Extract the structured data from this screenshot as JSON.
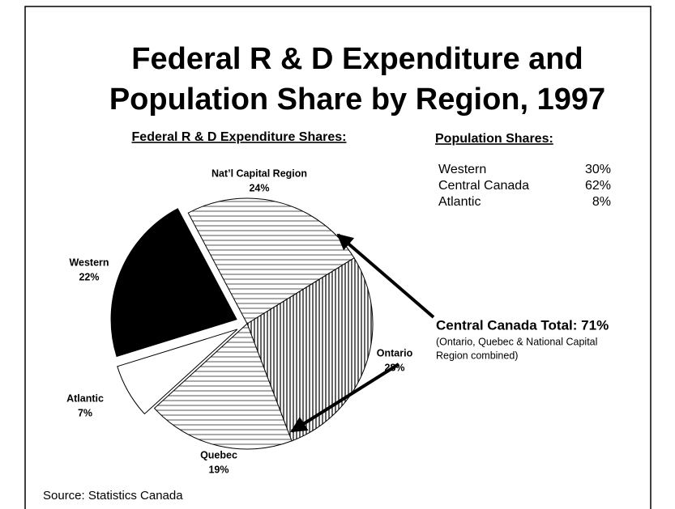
{
  "chart_data": {
    "type": "pie",
    "title": [
      "Federal R & D Expenditure and",
      "Population Share by Region, 1997"
    ],
    "subtitle": "Federal R & D Expenditure Shares:",
    "categories": [
      "Nat’l Capital Region",
      "Ontario",
      "Quebec",
      "Atlantic",
      "Western"
    ],
    "values": [
      24,
      28,
      19,
      7,
      22
    ],
    "value_labels": [
      "24%",
      "28%",
      "19%",
      "7%",
      "22%"
    ],
    "patterns": [
      "horizontal",
      "vertical",
      "horizontal",
      "none",
      "solid"
    ],
    "exploded": [
      false,
      false,
      false,
      true,
      true
    ],
    "annotation": {
      "title": "Central Canada Total:  71%",
      "lines": [
        "(Ontario, Quebec & National Capital",
        "Region combined)"
      ]
    },
    "population_shares": {
      "title": "Population Shares:",
      "categories": [
        "Western",
        "Central Canada",
        "Atlantic"
      ],
      "values": [
        30,
        62,
        8
      ],
      "value_labels": [
        "30%",
        "62%",
        "8%"
      ]
    },
    "source": "Source:  Statistics Canada"
  }
}
